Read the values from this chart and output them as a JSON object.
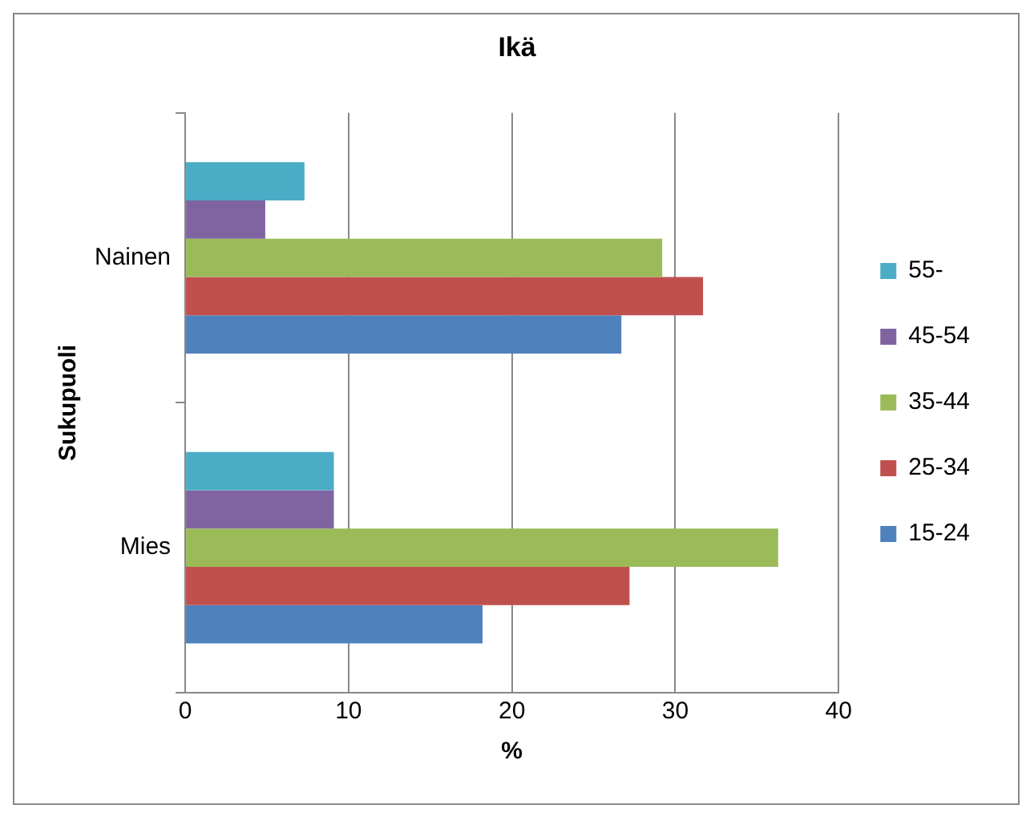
{
  "chart_data": {
    "type": "bar",
    "orientation": "horizontal",
    "title": "Ikä",
    "xlabel": "%",
    "ylabel": "Sukupuoli",
    "categories": [
      "Nainen",
      "Mies"
    ],
    "series": [
      {
        "name": "55-",
        "color": "#4bacc6",
        "values": [
          7.3,
          9.1
        ]
      },
      {
        "name": "45-54",
        "color": "#8064a2",
        "values": [
          4.9,
          9.1
        ]
      },
      {
        "name": "35-44",
        "color": "#9bbb59",
        "values": [
          29.2,
          36.3
        ]
      },
      {
        "name": "25-34",
        "color": "#c0504d",
        "values": [
          31.7,
          27.2
        ]
      },
      {
        "name": "15-24",
        "color": "#4f81bd",
        "values": [
          26.7,
          18.2
        ]
      }
    ],
    "xlim": [
      0,
      40
    ],
    "xticks": [
      0,
      10,
      20,
      30,
      40
    ],
    "grid": "x",
    "legend": "right"
  }
}
